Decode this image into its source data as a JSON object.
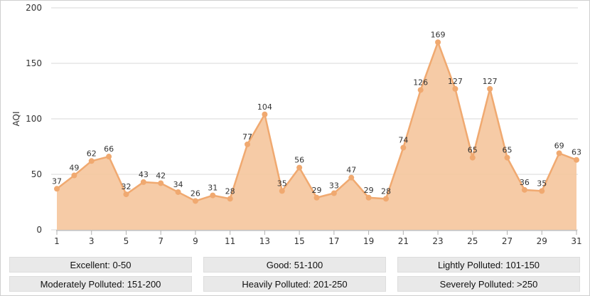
{
  "chart_data": {
    "type": "area",
    "title": "",
    "xlabel": "",
    "ylabel": "AQI",
    "ylim": [
      0,
      200
    ],
    "yticks": [
      0,
      50,
      100,
      150,
      200
    ],
    "xticks": [
      1,
      3,
      5,
      7,
      9,
      11,
      13,
      15,
      17,
      19,
      21,
      23,
      25,
      27,
      29,
      31
    ],
    "x": [
      1,
      2,
      3,
      4,
      5,
      6,
      7,
      8,
      9,
      10,
      11,
      12,
      13,
      14,
      15,
      16,
      17,
      18,
      19,
      20,
      21,
      22,
      23,
      24,
      25,
      26,
      27,
      28,
      29,
      30,
      31
    ],
    "values": [
      37,
      49,
      62,
      66,
      32,
      43,
      42,
      34,
      26,
      31,
      28,
      77,
      104,
      35,
      56,
      29,
      33,
      47,
      29,
      28,
      74,
      126,
      169,
      127,
      65,
      127,
      65,
      36,
      35,
      69,
      63
    ],
    "grid": true,
    "colors": {
      "line": "#f0a970",
      "fill": "#f5c59c",
      "marker": "#f0a970",
      "grid": "#d9d9d9",
      "axis": "#b0b0b0",
      "text": "#333333"
    }
  },
  "legend": {
    "items": [
      "Excellent: 0-50",
      "Good: 51-100",
      "Lightly Polluted: 101-150",
      "Moderately Polluted: 151-200",
      "Heavily Polluted: 201-250",
      "Severely Polluted: >250"
    ]
  }
}
